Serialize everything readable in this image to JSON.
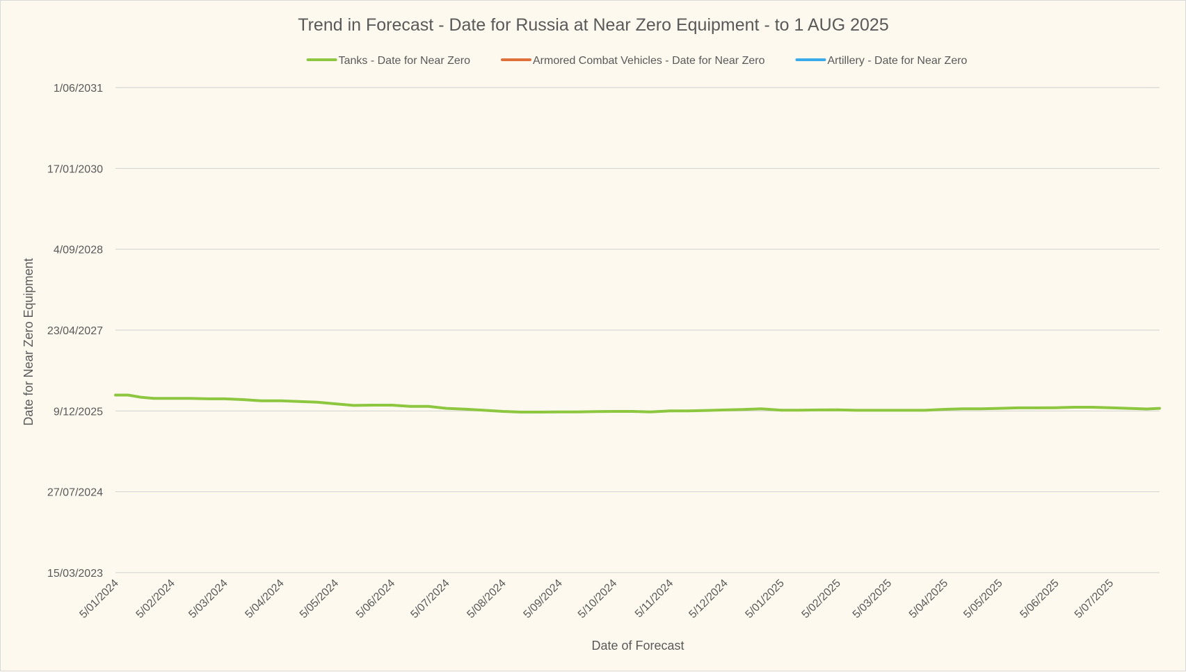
{
  "chart_data": {
    "type": "line",
    "title": "Trend in Forecast - Date for Russia at Near Zero Equipment - to 1 AUG 2025",
    "xlabel": "Date of Forecast",
    "ylabel": "Date for Near Zero Equipment",
    "x_ticks": [
      "5/01/2024",
      "5/02/2024",
      "5/03/2024",
      "5/04/2024",
      "5/05/2024",
      "5/06/2024",
      "5/07/2024",
      "5/08/2024",
      "5/09/2024",
      "5/10/2024",
      "5/11/2024",
      "5/12/2024",
      "5/01/2025",
      "5/02/2025",
      "5/03/2025",
      "5/04/2025",
      "5/05/2025",
      "5/06/2025",
      "5/07/2025"
    ],
    "y_ticks": [
      "15/03/2023",
      "27/07/2024",
      "9/12/2025",
      "23/04/2027",
      "4/09/2028",
      "17/01/2030",
      "1/06/2031"
    ],
    "xlim": [
      "2024-01-05",
      "2025-08-01"
    ],
    "ylim": [
      "2023-03-15",
      "2031-06-01"
    ],
    "grid": "horizontal",
    "legend_position": "top",
    "series": [
      {
        "name": "Tanks - Date for Near Zero",
        "color": "#8dc63f",
        "points": [
          [
            "2024-01-05",
            "2026-03-17"
          ],
          [
            "2024-01-12",
            "2026-03-17"
          ],
          [
            "2024-01-19",
            "2026-03-04"
          ],
          [
            "2024-01-26",
            "2026-02-25"
          ],
          [
            "2024-02-05",
            "2026-02-25"
          ],
          [
            "2024-02-15",
            "2026-02-25"
          ],
          [
            "2024-02-25",
            "2026-02-22"
          ],
          [
            "2024-03-05",
            "2026-02-22"
          ],
          [
            "2024-03-15",
            "2026-02-17"
          ],
          [
            "2024-03-25",
            "2026-02-10"
          ],
          [
            "2024-04-05",
            "2026-02-10"
          ],
          [
            "2024-04-15",
            "2026-02-05"
          ],
          [
            "2024-04-25",
            "2026-02-01"
          ],
          [
            "2024-05-05",
            "2026-01-22"
          ],
          [
            "2024-05-15",
            "2026-01-12"
          ],
          [
            "2024-05-25",
            "2026-01-14"
          ],
          [
            "2024-06-05",
            "2026-01-14"
          ],
          [
            "2024-06-15",
            "2026-01-06"
          ],
          [
            "2024-06-25",
            "2026-01-06"
          ],
          [
            "2024-07-05",
            "2025-12-25"
          ],
          [
            "2024-07-15",
            "2025-12-20"
          ],
          [
            "2024-07-25",
            "2025-12-14"
          ],
          [
            "2024-08-05",
            "2025-12-06"
          ],
          [
            "2024-08-15",
            "2025-12-02"
          ],
          [
            "2024-08-25",
            "2025-12-02"
          ],
          [
            "2024-09-05",
            "2025-12-03"
          ],
          [
            "2024-09-15",
            "2025-12-03"
          ],
          [
            "2024-09-25",
            "2025-12-05"
          ],
          [
            "2024-10-05",
            "2025-12-06"
          ],
          [
            "2024-10-15",
            "2025-12-06"
          ],
          [
            "2024-10-25",
            "2025-12-03"
          ],
          [
            "2024-11-05",
            "2025-12-09"
          ],
          [
            "2024-11-15",
            "2025-12-09"
          ],
          [
            "2024-11-25",
            "2025-12-12"
          ],
          [
            "2024-12-05",
            "2025-12-15"
          ],
          [
            "2024-12-15",
            "2025-12-18"
          ],
          [
            "2024-12-25",
            "2025-12-22"
          ],
          [
            "2025-01-05",
            "2025-12-14"
          ],
          [
            "2025-01-15",
            "2025-12-14"
          ],
          [
            "2025-01-25",
            "2025-12-15"
          ],
          [
            "2025-02-05",
            "2025-12-16"
          ],
          [
            "2025-02-15",
            "2025-12-13"
          ],
          [
            "2025-02-25",
            "2025-12-13"
          ],
          [
            "2025-03-05",
            "2025-12-13"
          ],
          [
            "2025-03-15",
            "2025-12-13"
          ],
          [
            "2025-03-25",
            "2025-12-13"
          ],
          [
            "2025-04-05",
            "2025-12-19"
          ],
          [
            "2025-04-15",
            "2025-12-22"
          ],
          [
            "2025-04-25",
            "2025-12-22"
          ],
          [
            "2025-05-05",
            "2025-12-25"
          ],
          [
            "2025-05-15",
            "2025-12-28"
          ],
          [
            "2025-05-25",
            "2025-12-28"
          ],
          [
            "2025-06-05",
            "2025-12-29"
          ],
          [
            "2025-06-15",
            "2026-01-01"
          ],
          [
            "2025-06-25",
            "2026-01-01"
          ],
          [
            "2025-07-05",
            "2025-12-29"
          ],
          [
            "2025-07-15",
            "2025-12-25"
          ],
          [
            "2025-07-25",
            "2025-12-21"
          ],
          [
            "2025-08-01",
            "2025-12-25"
          ]
        ]
      },
      {
        "name": "Armored Combat Vehicles - Date for Near Zero",
        "color": "#e0703a",
        "points": []
      },
      {
        "name": "Artillery - Date for Near Zero",
        "color": "#3aabea",
        "points": []
      }
    ]
  }
}
